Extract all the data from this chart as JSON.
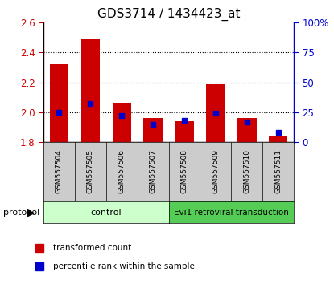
{
  "title": "GDS3714 / 1434423_at",
  "samples": [
    "GSM557504",
    "GSM557505",
    "GSM557506",
    "GSM557507",
    "GSM557508",
    "GSM557509",
    "GSM557510",
    "GSM557511"
  ],
  "transformed_counts": [
    2.32,
    2.49,
    2.06,
    1.96,
    1.94,
    2.19,
    1.96,
    1.84
  ],
  "percentile_ranks": [
    25,
    32,
    22,
    15,
    18,
    24,
    17,
    8
  ],
  "ymin": 1.8,
  "ymax": 2.6,
  "yticks": [
    1.8,
    2.0,
    2.2,
    2.4,
    2.6
  ],
  "right_yticks": [
    0,
    25,
    50,
    75,
    100
  ],
  "right_ylabels": [
    "0",
    "25",
    "50",
    "75",
    "100%"
  ],
  "bar_color": "#cc0000",
  "blue_color": "#0000cc",
  "bar_width": 0.6,
  "control_label": "control",
  "treatment_label": "Evi1 retroviral transduction",
  "control_bg": "#ccffcc",
  "treatment_bg": "#55cc55",
  "protocol_label": "protocol",
  "legend_red_label": "transformed count",
  "legend_blue_label": "percentile rank within the sample",
  "sample_bg": "#cccccc",
  "left_tick_color": "#cc0000",
  "right_tick_color": "#0000cc",
  "title_fontsize": 11,
  "tick_fontsize": 8.5,
  "grid_color": "black",
  "grid_linestyle": ":",
  "grid_linewidth": 0.8
}
